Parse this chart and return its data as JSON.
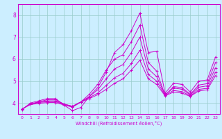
{
  "xlabel": "Windchill (Refroidissement éolien,°C)",
  "bg_color": "#cceeff",
  "line_color": "#cc00cc",
  "grid_color": "#99cccc",
  "text_color": "#cc00cc",
  "xlim": [
    -0.5,
    23.5
  ],
  "ylim": [
    3.5,
    8.5
  ],
  "xticks": [
    0,
    1,
    2,
    3,
    4,
    5,
    6,
    7,
    8,
    9,
    10,
    11,
    12,
    13,
    14,
    15,
    16,
    17,
    18,
    19,
    20,
    21,
    22,
    23
  ],
  "yticks": [
    4,
    5,
    6,
    7,
    8
  ],
  "lines": [
    [
      3.7,
      4.0,
      4.1,
      4.2,
      4.2,
      3.9,
      3.65,
      3.8,
      4.3,
      4.7,
      5.4,
      6.3,
      6.65,
      7.3,
      8.1,
      6.3,
      6.35,
      4.45,
      4.9,
      4.85,
      4.5,
      5.0,
      5.05,
      6.1
    ],
    [
      3.72,
      3.95,
      4.05,
      4.15,
      4.15,
      3.95,
      3.85,
      4.05,
      4.4,
      4.85,
      5.5,
      6.0,
      6.2,
      6.8,
      7.55,
      5.85,
      5.45,
      4.35,
      4.75,
      4.7,
      4.4,
      4.82,
      4.88,
      5.85
    ],
    [
      3.72,
      3.95,
      4.05,
      4.1,
      4.1,
      3.95,
      3.85,
      4.05,
      4.3,
      4.6,
      5.1,
      5.55,
      5.75,
      6.3,
      7.0,
      5.55,
      5.2,
      4.38,
      4.68,
      4.63,
      4.37,
      4.72,
      4.78,
      5.6
    ],
    [
      3.72,
      3.95,
      4.02,
      4.06,
      4.06,
      3.93,
      3.83,
      4.05,
      4.25,
      4.45,
      4.8,
      5.15,
      5.35,
      5.8,
      6.4,
      5.3,
      5.0,
      4.35,
      4.57,
      4.52,
      4.33,
      4.62,
      4.67,
      5.4
    ],
    [
      3.72,
      3.93,
      3.98,
      4.02,
      4.02,
      3.91,
      3.81,
      4.04,
      4.2,
      4.38,
      4.62,
      4.9,
      5.1,
      5.5,
      5.95,
      5.1,
      4.85,
      4.32,
      4.5,
      4.45,
      4.3,
      4.55,
      4.6,
      5.25
    ]
  ]
}
